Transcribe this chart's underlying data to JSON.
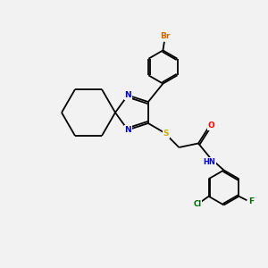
{
  "background_color": "#f2f2f2",
  "bond_color": "#000000",
  "atom_colors": {
    "N": "#0000cc",
    "S": "#ccaa00",
    "O": "#ff0000",
    "Br": "#cc6600",
    "Cl": "#006600",
    "F": "#006600",
    "H": "#000000",
    "C": "#000000"
  },
  "figsize": [
    3.0,
    3.0
  ],
  "dpi": 100
}
